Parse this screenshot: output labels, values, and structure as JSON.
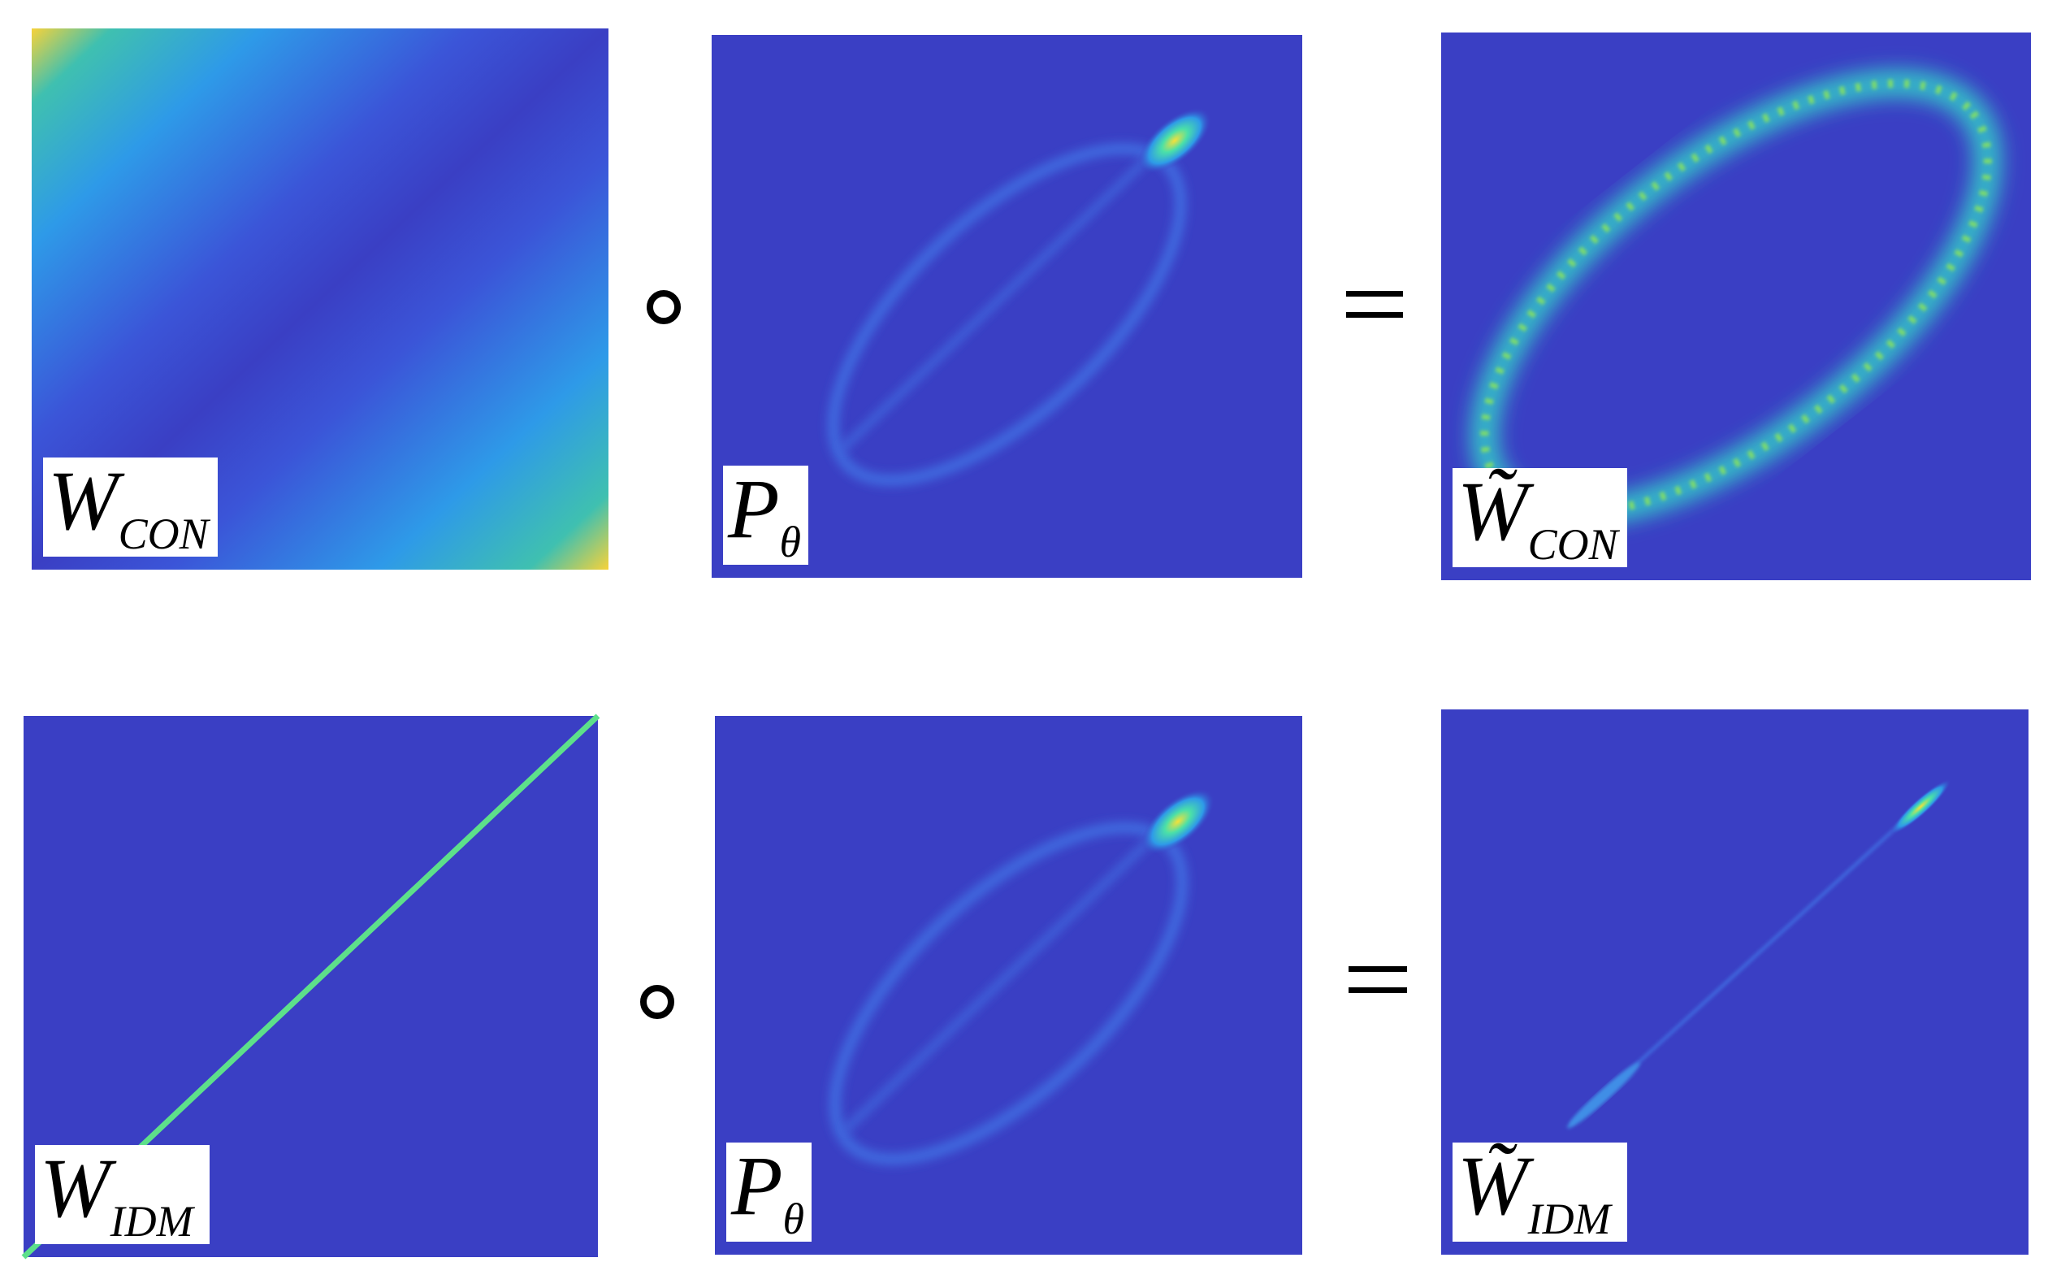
{
  "rows": [
    {
      "panels": [
        {
          "label": "W",
          "subscript": "CON"
        },
        {
          "label": "P",
          "subscript": "θ"
        },
        {
          "label": "W̃",
          "subscript": "CON"
        }
      ]
    },
    {
      "panels": [
        {
          "label": "W",
          "subscript": "IDM"
        },
        {
          "label": "P",
          "subscript": "θ"
        },
        {
          "label": "W̃",
          "subscript": "IDM"
        }
      ]
    }
  ]
}
